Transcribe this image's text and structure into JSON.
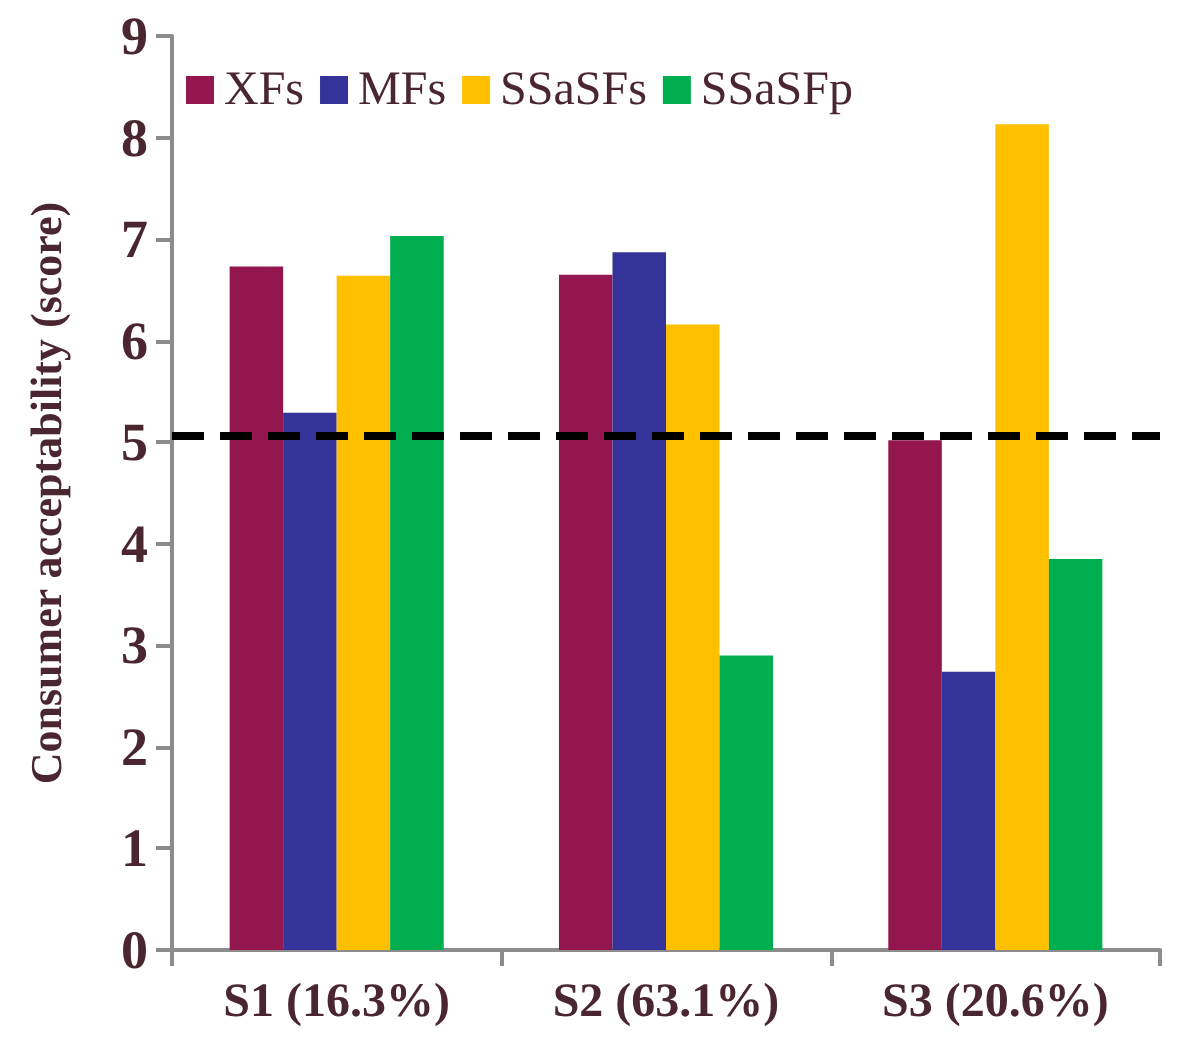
{
  "chart_data": {
    "type": "bar",
    "ylabel": "Consumer acceptability (score)",
    "categories": [
      "S1 (16.3%)",
      "S2 (63.1%)",
      "S3 (20.6%)"
    ],
    "series": [
      {
        "name": "XFs",
        "color": "#93174e",
        "values": [
          6.73,
          6.65,
          5.02
        ]
      },
      {
        "name": "MFs",
        "color": "#343399",
        "values": [
          5.29,
          6.87,
          2.74
        ]
      },
      {
        "name": "SSaSFs",
        "color": "#fec000",
        "values": [
          6.64,
          6.16,
          8.13
        ]
      },
      {
        "name": "SSaSFp",
        "color": "#00ae4f",
        "values": [
          7.03,
          2.9,
          3.85
        ]
      }
    ],
    "ylim": [
      0,
      9
    ],
    "yticks": [
      0,
      1,
      2,
      3,
      4,
      5,
      6,
      7,
      8,
      9
    ],
    "grid": false,
    "legend": "top",
    "ref_lines": [
      {
        "axis": "y",
        "value": 5.07,
        "color": "#000000",
        "line_style": "dashed"
      }
    ]
  }
}
